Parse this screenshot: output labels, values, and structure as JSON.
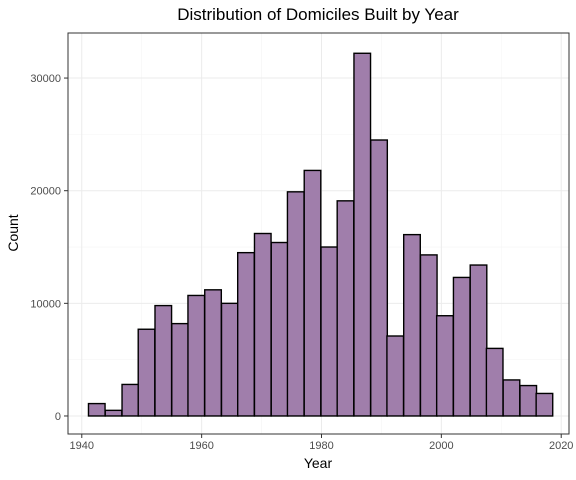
{
  "chart_data": {
    "type": "bar",
    "title": "Distribution of Domiciles Built by Year",
    "xlabel": "Year",
    "ylabel": "Count",
    "x_ticks": [
      1940,
      1960,
      1980,
      2000,
      2020
    ],
    "y_ticks": [
      0,
      10000,
      20000,
      30000
    ],
    "xlim": [
      1937.7,
      2021.3
    ],
    "ylim": [
      -1600,
      34000
    ],
    "grid": true,
    "bin_width": 2.767,
    "bins": [
      {
        "x": 1942.5,
        "count": 1100
      },
      {
        "x": 1945.3,
        "count": 500
      },
      {
        "x": 1948.1,
        "count": 2800
      },
      {
        "x": 1950.8,
        "count": 7700
      },
      {
        "x": 1953.6,
        "count": 9800
      },
      {
        "x": 1956.4,
        "count": 8200
      },
      {
        "x": 1959.1,
        "count": 10700
      },
      {
        "x": 1961.9,
        "count": 11200
      },
      {
        "x": 1964.7,
        "count": 10000
      },
      {
        "x": 1967.4,
        "count": 14500
      },
      {
        "x": 1970.2,
        "count": 16200
      },
      {
        "x": 1973.0,
        "count": 15400
      },
      {
        "x": 1975.7,
        "count": 19900
      },
      {
        "x": 1978.5,
        "count": 21800
      },
      {
        "x": 1981.3,
        "count": 15000
      },
      {
        "x": 1984.0,
        "count": 19100
      },
      {
        "x": 1986.8,
        "count": 32200
      },
      {
        "x": 1989.6,
        "count": 24500
      },
      {
        "x": 1992.3,
        "count": 7100
      },
      {
        "x": 1995.1,
        "count": 16100
      },
      {
        "x": 1997.9,
        "count": 14300
      },
      {
        "x": 2000.6,
        "count": 8900
      },
      {
        "x": 2003.4,
        "count": 12300
      },
      {
        "x": 2006.2,
        "count": 13400
      },
      {
        "x": 2008.9,
        "count": 6000
      },
      {
        "x": 2011.7,
        "count": 3200
      },
      {
        "x": 2014.5,
        "count": 2700
      },
      {
        "x": 2017.2,
        "count": 2000
      }
    ],
    "colors": {
      "bar_fill": "#a07eab",
      "bar_stroke": "#000000",
      "grid_major": "#ebebeb",
      "grid_minor": "#f5f5f5",
      "panel_border": "#333333",
      "tick_text": "#4d4d4d"
    }
  }
}
